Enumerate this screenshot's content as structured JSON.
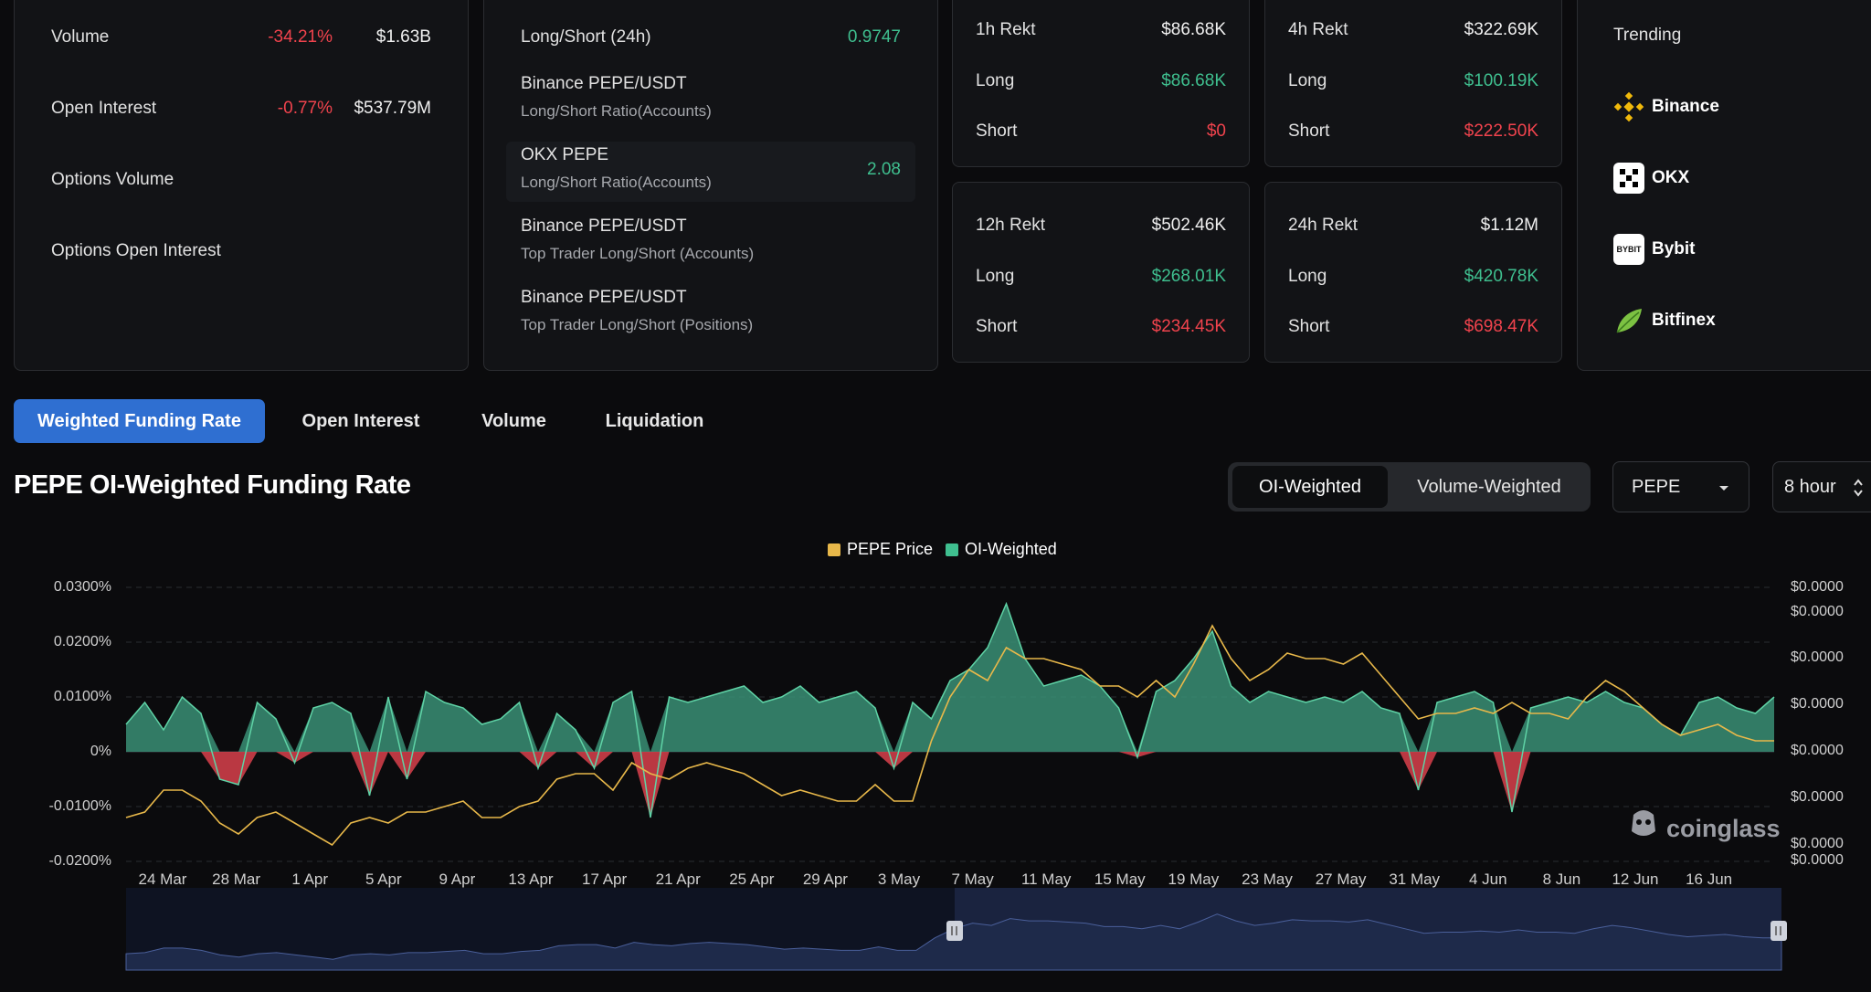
{
  "market_stats": {
    "volume": {
      "label": "Volume",
      "change": "-34.21%",
      "value": "$1.63B"
    },
    "open_interest": {
      "label": "Open Interest",
      "change": "-0.77%",
      "value": "$537.79M"
    },
    "options_volume": {
      "label": "Options Volume"
    },
    "options_open_interest": {
      "label": "Options Open Interest"
    }
  },
  "long_short": {
    "header_label": "Long/Short (24h)",
    "header_value": "0.9747",
    "rows": [
      {
        "title": "Binance PEPE/USDT",
        "subtitle": "Long/Short Ratio(Accounts)",
        "value": ""
      },
      {
        "title": "OKX PEPE",
        "subtitle": "Long/Short Ratio(Accounts)",
        "value": "2.08"
      },
      {
        "title": "Binance PEPE/USDT",
        "subtitle": "Top Trader Long/Short (Accounts)",
        "value": ""
      },
      {
        "title": "Binance PEPE/USDT",
        "subtitle": "Top Trader Long/Short (Positions)",
        "value": ""
      }
    ]
  },
  "rekt": {
    "h1": {
      "label": "1h Rekt",
      "total": "$86.68K",
      "long_label": "Long",
      "long": "$86.68K",
      "short_label": "Short",
      "short": "$0"
    },
    "h4": {
      "label": "4h Rekt",
      "total": "$322.69K",
      "long_label": "Long",
      "long": "$100.19K",
      "short_label": "Short",
      "short": "$222.50K"
    },
    "h12": {
      "label": "12h Rekt",
      "total": "$502.46K",
      "long_label": "Long",
      "long": "$268.01K",
      "short_label": "Short",
      "short": "$234.45K"
    },
    "h24": {
      "label": "24h Rekt",
      "total": "$1.12M",
      "long_label": "Long",
      "long": "$420.78K",
      "short_label": "Short",
      "short": "$698.47K"
    }
  },
  "trending": {
    "title": "Trending",
    "items": [
      {
        "name": "Binance",
        "icon": "binance-icon"
      },
      {
        "name": "OKX",
        "icon": "okx-icon"
      },
      {
        "name": "Bybit",
        "icon": "bybit-icon",
        "icon_text": "BYBIT"
      },
      {
        "name": "Bitfinex",
        "icon": "bitfinex-icon"
      }
    ]
  },
  "tabs": [
    "Weighted Funding Rate",
    "Open Interest",
    "Volume",
    "Liquidation"
  ],
  "active_tab": "Weighted Funding Rate",
  "chart_header": {
    "title": "PEPE OI-Weighted Funding Rate",
    "weighting_options": [
      "OI-Weighted",
      "Volume-Weighted"
    ],
    "selected_weighting": "OI-Weighted",
    "symbol": "PEPE",
    "interval": "8 hour"
  },
  "watermark": "coinglass",
  "colors": {
    "accent": "#2f6fd1",
    "positive": "#3fbf8f",
    "negative": "#f0434d",
    "price_line": "#e8b84a",
    "area_fill": "#3a8f75",
    "navigator_fill": "#1e2a4a"
  },
  "chart_data": {
    "type": "area",
    "legend": [
      "PEPE Price",
      "OI-Weighted"
    ],
    "legend_placement": "top-center",
    "y_left_ticks": [
      "0.0300%",
      "0.0200%",
      "0.0100%",
      "0%",
      "-0.0100%",
      "-0.0200%"
    ],
    "y_left_range": [
      -0.02,
      0.03
    ],
    "y_right_ticks": [
      "$0.0000",
      "$0.0000",
      "$0.0000",
      "$0.0000",
      "$0.0000",
      "$0.0000",
      "$0.0000",
      "$0.0000"
    ],
    "x_ticks": [
      "24 Mar",
      "28 Mar",
      "1 Apr",
      "5 Apr",
      "9 Apr",
      "13 Apr",
      "17 Apr",
      "21 Apr",
      "25 Apr",
      "29 Apr",
      "3 May",
      "7 May",
      "11 May",
      "15 May",
      "19 May",
      "23 May",
      "27 May",
      "31 May",
      "4 Jun",
      "8 Jun",
      "12 Jun",
      "16 Jun"
    ],
    "funding_rate": [
      0.005,
      0.009,
      0.004,
      0.01,
      0.007,
      -0.005,
      -0.006,
      0.009,
      0.006,
      -0.002,
      0.008,
      0.009,
      0.007,
      -0.008,
      0.01,
      -0.005,
      0.011,
      0.009,
      0.008,
      0.005,
      0.006,
      0.009,
      -0.003,
      0.007,
      0.004,
      -0.003,
      0.009,
      0.011,
      -0.012,
      0.01,
      0.009,
      0.01,
      0.011,
      0.012,
      0.009,
      0.01,
      0.012,
      0.009,
      0.01,
      0.011,
      0.008,
      -0.003,
      0.009,
      0.006,
      0.013,
      0.015,
      0.019,
      0.027,
      0.017,
      0.012,
      0.013,
      0.014,
      0.012,
      0.008,
      -0.001,
      0.011,
      0.013,
      0.017,
      0.022,
      0.012,
      0.009,
      0.011,
      0.01,
      0.009,
      0.01,
      0.009,
      0.011,
      0.008,
      0.007,
      -0.007,
      0.009,
      0.01,
      0.011,
      0.009,
      -0.011,
      0.008,
      0.009,
      0.01,
      0.009,
      0.011,
      0.009,
      0.008,
      0.005,
      0.003,
      0.009,
      0.01,
      0.008,
      0.007,
      0.01
    ],
    "price_series": [
      -0.012,
      -0.011,
      -0.007,
      -0.007,
      -0.009,
      -0.013,
      -0.015,
      -0.012,
      -0.011,
      -0.013,
      -0.015,
      -0.017,
      -0.013,
      -0.012,
      -0.013,
      -0.011,
      -0.011,
      -0.01,
      -0.009,
      -0.012,
      -0.012,
      -0.01,
      -0.009,
      -0.005,
      -0.004,
      -0.004,
      -0.007,
      -0.002,
      -0.004,
      -0.005,
      -0.003,
      -0.002,
      -0.003,
      -0.004,
      -0.006,
      -0.008,
      -0.007,
      -0.008,
      -0.009,
      -0.009,
      -0.006,
      -0.009,
      -0.009,
      0.002,
      0.01,
      0.015,
      0.013,
      0.019,
      0.017,
      0.017,
      0.016,
      0.015,
      0.012,
      0.012,
      0.01,
      0.013,
      0.01,
      0.016,
      0.023,
      0.017,
      0.013,
      0.015,
      0.018,
      0.017,
      0.017,
      0.016,
      0.018,
      0.014,
      0.01,
      0.006,
      0.007,
      0.007,
      0.008,
      0.007,
      0.009,
      0.007,
      0.007,
      0.006,
      0.01,
      0.013,
      0.011,
      0.008,
      0.005,
      0.003,
      0.004,
      0.005,
      0.003,
      0.002,
      0.002
    ]
  }
}
